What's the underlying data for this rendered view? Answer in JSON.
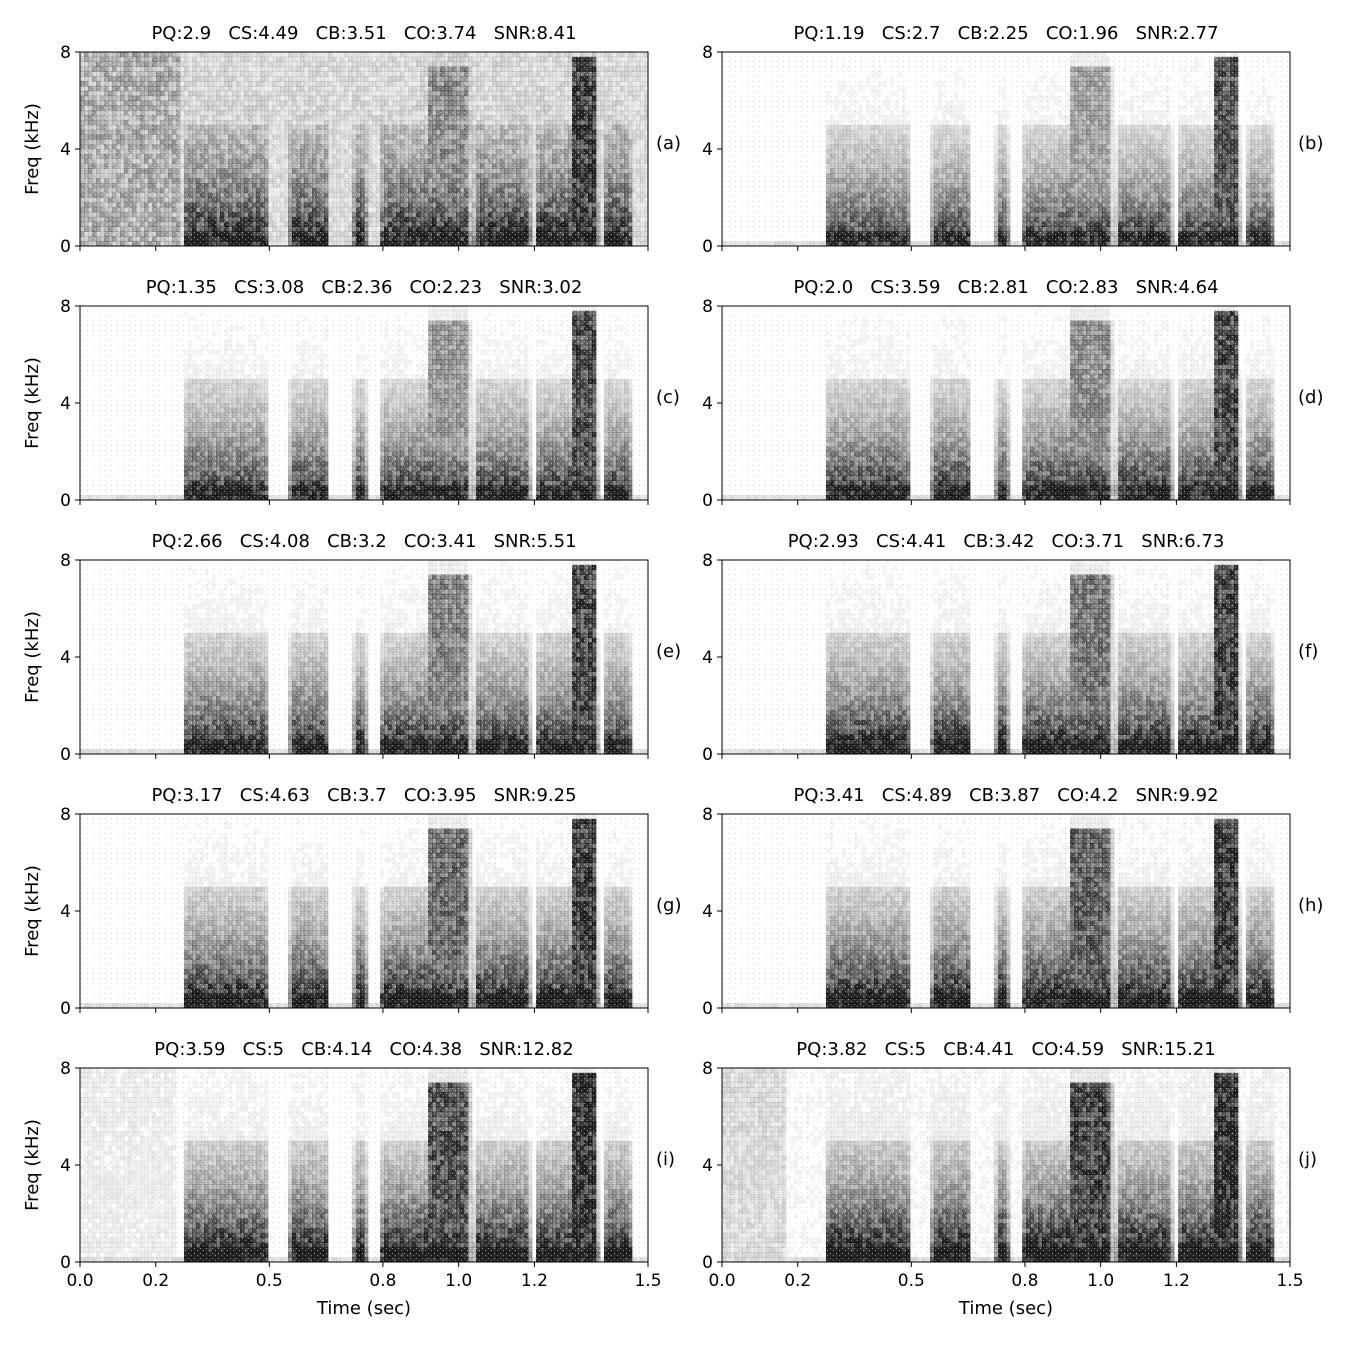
{
  "chart_data": {
    "type": "heatmap",
    "colormap": "gray_r",
    "grid": false,
    "x_axis": {
      "label": "Time (sec)",
      "range": [
        0.0,
        1.5
      ],
      "ticks": [
        0.0,
        0.2,
        0.5,
        0.8,
        1.0,
        1.2,
        1.5
      ],
      "tick_labels": [
        "0.0",
        "0.2",
        "0.5",
        "0.8",
        "1.0",
        "1.2",
        "1.5"
      ]
    },
    "y_axis": {
      "label": "Freq (kHz)",
      "range": [
        0,
        8
      ],
      "ticks": [
        0,
        4,
        8
      ],
      "tick_labels": [
        "0",
        "4",
        "8"
      ]
    },
    "panels": [
      {
        "panel_label": "(a)",
        "title": "PQ:2.9   CS:4.49   CB:3.51   CO:3.74   SNR:8.41"
      },
      {
        "panel_label": "(b)",
        "title": "PQ:1.19   CS:2.7   CB:2.25   CO:1.96   SNR:2.77"
      },
      {
        "panel_label": "(c)",
        "title": "PQ:1.35   CS:3.08   CB:2.36   CO:2.23   SNR:3.02"
      },
      {
        "panel_label": "(d)",
        "title": "PQ:2.0   CS:3.59   CB:2.81   CO:2.83   SNR:4.64"
      },
      {
        "panel_label": "(e)",
        "title": "PQ:2.66   CS:4.08   CB:3.2   CO:3.41   SNR:5.51"
      },
      {
        "panel_label": "(f)",
        "title": "PQ:2.93   CS:4.41   CB:3.42   CO:3.71   SNR:6.73"
      },
      {
        "panel_label": "(g)",
        "title": "PQ:3.17   CS:4.63   CB:3.7   CO:3.95   SNR:9.25"
      },
      {
        "panel_label": "(h)",
        "title": "PQ:3.41   CS:4.89   CB:3.87   CO:4.2   SNR:9.92"
      },
      {
        "panel_label": "(i)",
        "title": "PQ:3.59   CS:5   CB:4.14   CO:4.38   SNR:12.82"
      },
      {
        "panel_label": "(j)",
        "title": "PQ:3.82   CS:5   CB:4.41   CO:4.59   SNR:15.21"
      }
    ]
  }
}
